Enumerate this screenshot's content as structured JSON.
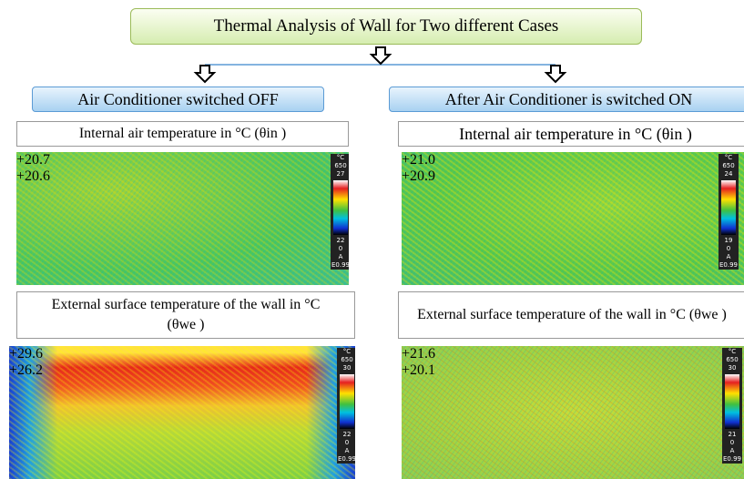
{
  "title": "Thermal Analysis of  Wall  for Two different Cases",
  "cases": [
    {
      "heading": "Air Conditioner switched OFF",
      "internal_label": "Internal air temperature in °C (θin )",
      "internal_image": {
        "markers": [
          "20.7",
          "20.6"
        ],
        "scale": {
          "unit": "°C",
          "top": "650",
          "max": "27",
          "min": "22",
          "zero": "0",
          "mode": "A",
          "emissivity": "E0.99"
        }
      },
      "external_label": "External surface temperature of the wall in °C (θwe )",
      "external_image": {
        "markers": [
          "29.6",
          "26.2"
        ],
        "scale": {
          "unit": "°C",
          "top": "650",
          "max": "30",
          "min": "22",
          "zero": "0",
          "mode": "A",
          "emissivity": "E0.99"
        }
      }
    },
    {
      "heading": "After Air Conditioner is switched ON",
      "internal_label": "Internal air temperature in °C (θin )",
      "internal_image": {
        "markers": [
          "21.0",
          "20.9"
        ],
        "scale": {
          "unit": "°C",
          "top": "650",
          "max": "24",
          "min": "19",
          "zero": "0",
          "mode": "A",
          "emissivity": "E0.99"
        }
      },
      "external_label": "External surface temperature of the wall in °C (θwe )",
      "external_image": {
        "markers": [
          "21.6",
          "20.1"
        ],
        "scale": {
          "unit": "°C",
          "top": "650",
          "max": "30",
          "min": "21",
          "zero": "0",
          "mode": "A",
          "emissivity": "E0.99"
        }
      }
    }
  ]
}
